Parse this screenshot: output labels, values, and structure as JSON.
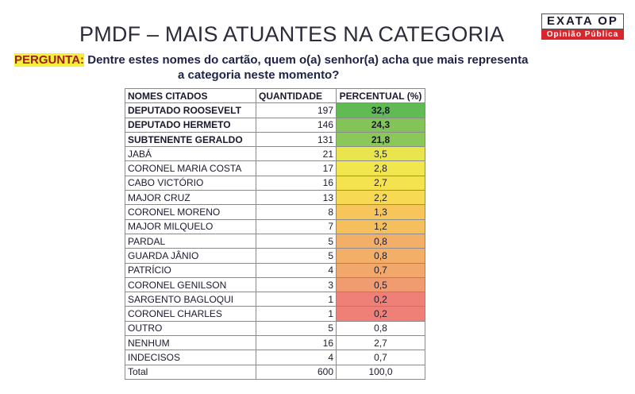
{
  "header": {
    "title": "PMDF – MAIS ATUANTES NA CATEGORIA",
    "logo": {
      "name": "EXATA OP",
      "tagline": "Opinião Pública"
    }
  },
  "question": {
    "label": "PERGUNTA:",
    "lines": [
      "Dentre estes nomes do cartão, quem o(a) senhor(a) acha que mais representa",
      "a categoria neste momento?"
    ]
  },
  "table": {
    "columns": [
      "NOMES CITADOS",
      "QUANTIDADE",
      "PERCENTUAL (%)"
    ],
    "rows": [
      {
        "cells": [
          "DEPUTADO ROOSEVELT",
          "197",
          "32,8"
        ],
        "fill": "#5fbb52",
        "bold": true
      },
      {
        "cells": [
          "DEPUTADO HERMETO",
          "146",
          "24,3"
        ],
        "fill": "#82c458",
        "bold": true
      },
      {
        "cells": [
          "SUBTENENTE GERALDO",
          "131",
          "21,8"
        ],
        "fill": "#8cc75a",
        "bold": true
      },
      {
        "cells": [
          "JABÁ",
          "21",
          "3,5"
        ],
        "fill": "#e8e64c"
      },
      {
        "cells": [
          "CORONEL MARIA COSTA",
          "17",
          "2,8"
        ],
        "fill": "#f2e64f"
      },
      {
        "cells": [
          "CABO VICTÓRIO",
          "16",
          "2,7"
        ],
        "fill": "#f4e24f"
      },
      {
        "cells": [
          "MAJOR CRUZ",
          "13",
          "2,2"
        ],
        "fill": "#f6da53"
      },
      {
        "cells": [
          "CORONEL MORENO",
          "8",
          "1,3"
        ],
        "fill": "#f6c65a"
      },
      {
        "cells": [
          "MAJOR MILQUELO",
          "7",
          "1,2"
        ],
        "fill": "#f5c05c"
      },
      {
        "cells": [
          "PARDAL",
          "5",
          "0,8"
        ],
        "fill": "#f3af68"
      },
      {
        "cells": [
          "GUARDA JÂNIO",
          "5",
          "0,8"
        ],
        "fill": "#f3af68"
      },
      {
        "cells": [
          "PATRÍCIO",
          "4",
          "0,7"
        ],
        "fill": "#f2a86b"
      },
      {
        "cells": [
          "CORONEL GENILSON",
          "3",
          "0,5"
        ],
        "fill": "#f19b70"
      },
      {
        "cells": [
          "SARGENTO BAGLOQUI",
          "1",
          "0,2"
        ],
        "fill": "#ee8078"
      },
      {
        "cells": [
          "CORONEL CHARLES",
          "1",
          "0,2"
        ],
        "fill": "#ee8078"
      },
      {
        "cells": [
          "OUTRO",
          "5",
          "0,8"
        ]
      },
      {
        "cells": [
          "NENHUM",
          "16",
          "2,7"
        ]
      },
      {
        "cells": [
          "INDECISOS",
          "4",
          "0,7"
        ]
      },
      {
        "cells": [
          "Total",
          "600",
          "100,0"
        ]
      }
    ]
  }
}
